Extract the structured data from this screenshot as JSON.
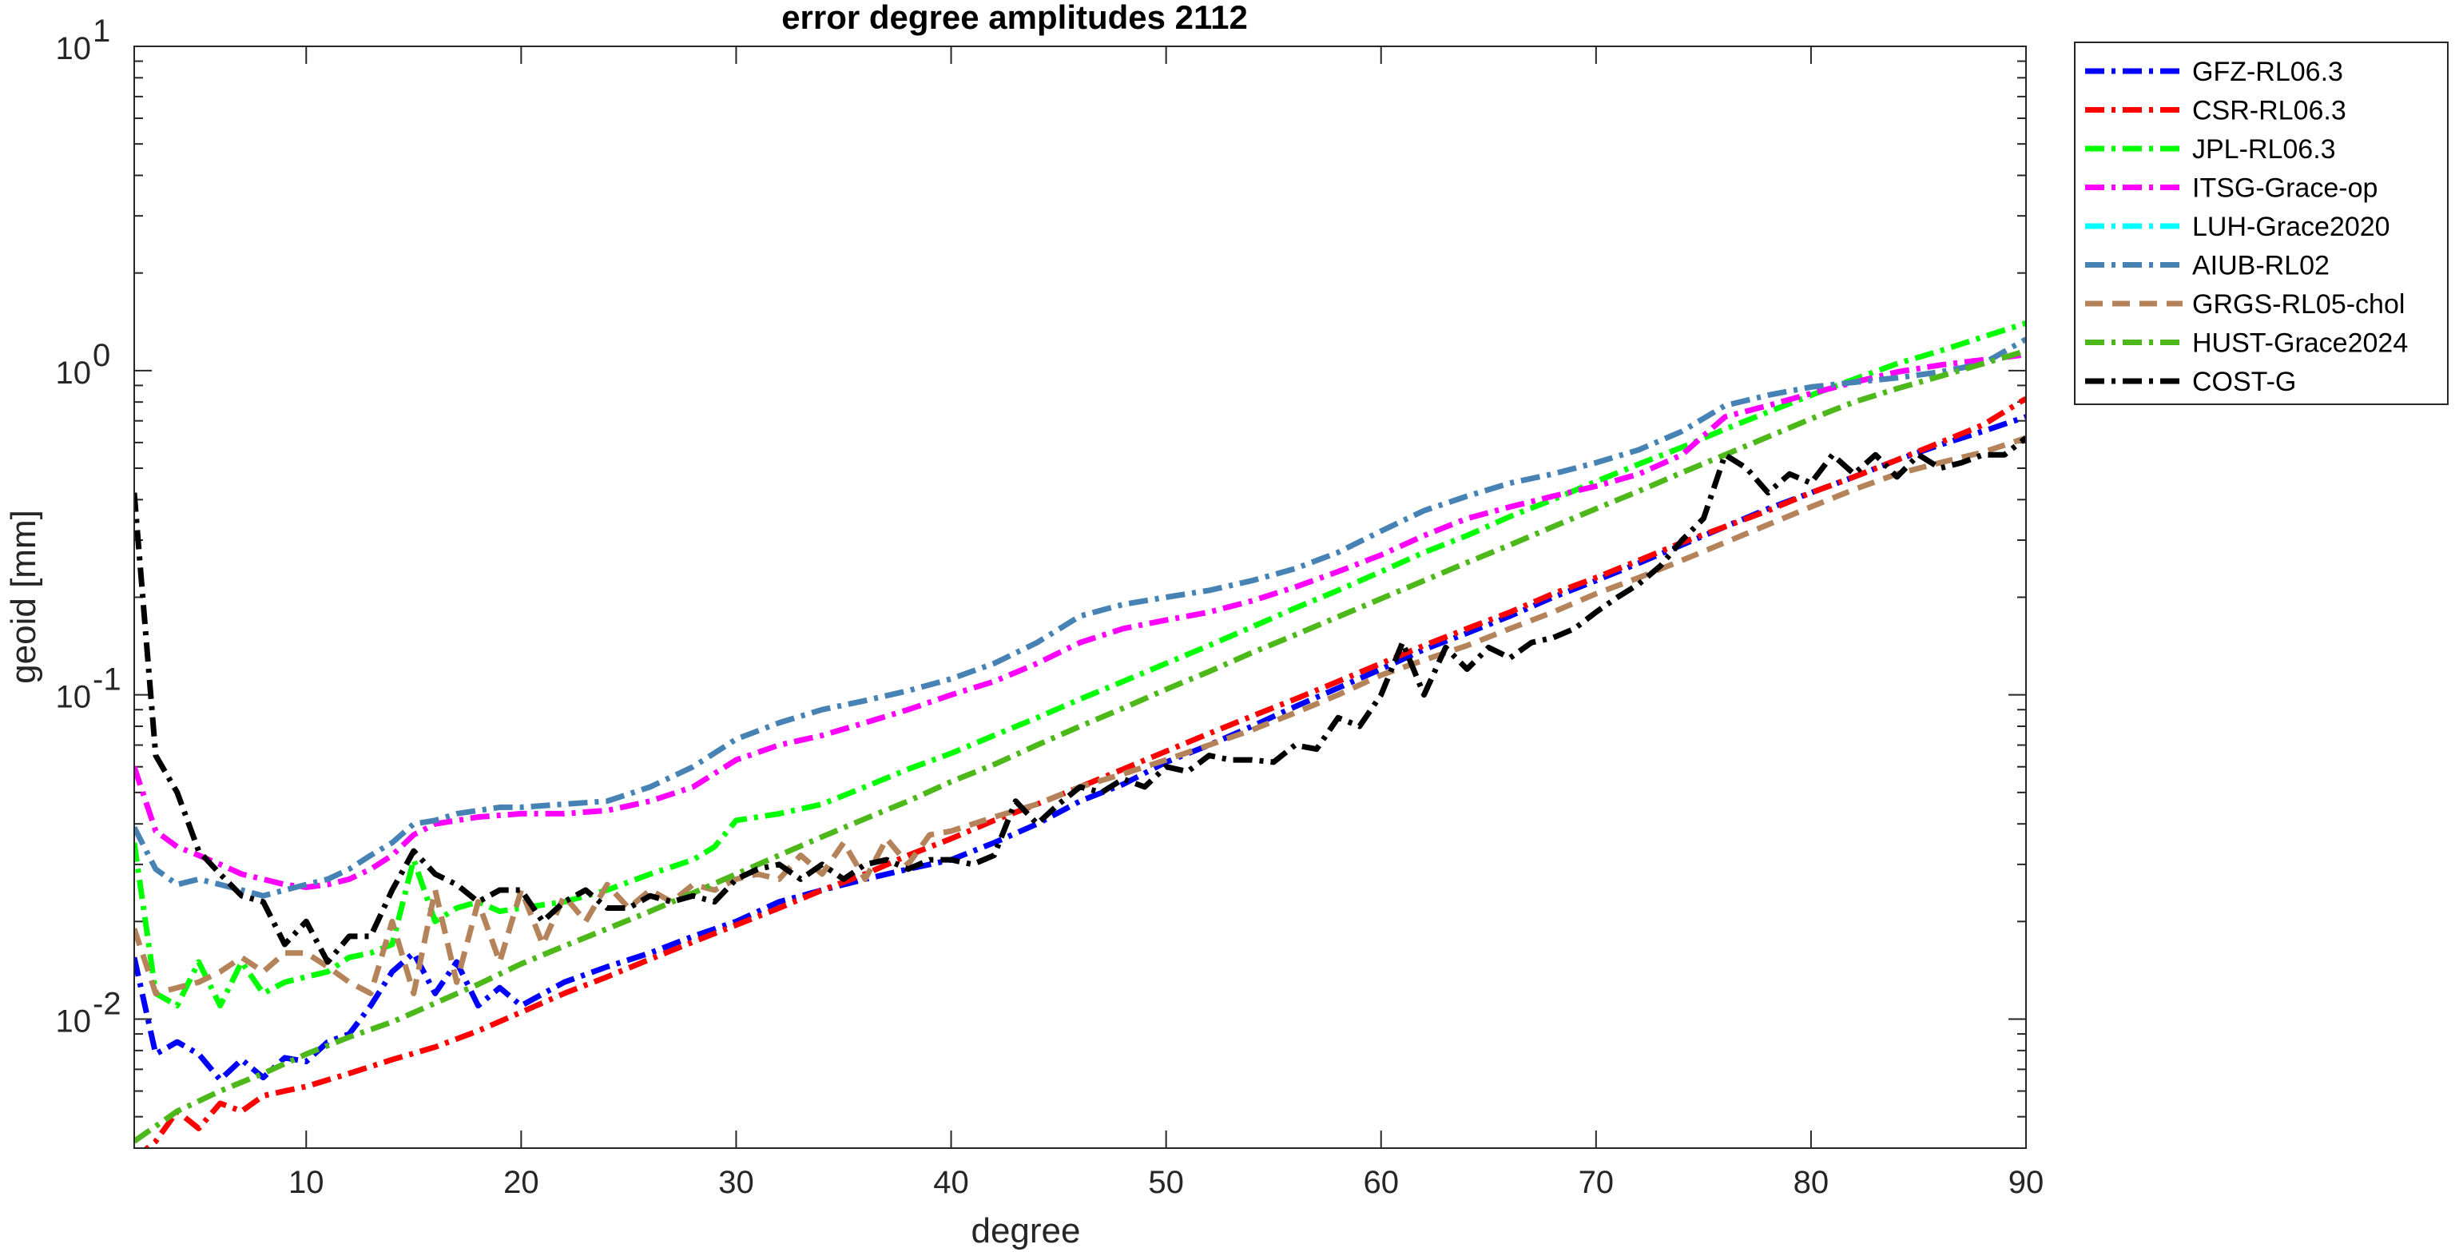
{
  "chart_data": {
    "type": "line",
    "title": "error degree amplitudes 2112",
    "xlabel": "degree",
    "ylabel": "geoid [mm]",
    "xlim": [
      2,
      90
    ],
    "ylim": [
      0.004,
      10
    ],
    "yscale": "log",
    "grid": false,
    "legend_position": "outside-top-right",
    "x_ticks": [
      10,
      20,
      30,
      40,
      50,
      60,
      70,
      80,
      90
    ],
    "y_ticks": [
      {
        "value": 0.01,
        "base": "10",
        "exp": "-2"
      },
      {
        "value": 0.1,
        "base": "10",
        "exp": "-1"
      },
      {
        "value": 1,
        "base": "10",
        "exp": "0"
      },
      {
        "value": 10,
        "base": "10",
        "exp": "1"
      }
    ],
    "series": [
      {
        "name": "GFZ-RL06.3",
        "color": "#0000ff",
        "dash": "dashdot",
        "x": [
          2,
          3,
          4,
          5,
          6,
          7,
          8,
          9,
          10,
          11,
          12,
          13,
          14,
          15,
          16,
          17,
          18,
          19,
          20,
          22,
          24,
          26,
          28,
          30,
          32,
          34,
          36,
          38,
          40,
          42,
          44,
          46,
          48,
          50,
          52,
          54,
          56,
          58,
          60,
          62,
          64,
          66,
          68,
          70,
          72,
          74,
          76,
          78,
          80,
          82,
          84,
          86,
          88,
          90
        ],
        "y": [
          0.0155,
          0.0078,
          0.0085,
          0.0078,
          0.0065,
          0.0075,
          0.0066,
          0.0076,
          0.0074,
          0.0085,
          0.009,
          0.011,
          0.014,
          0.016,
          0.012,
          0.015,
          0.011,
          0.0125,
          0.011,
          0.013,
          0.0145,
          0.016,
          0.018,
          0.02,
          0.023,
          0.025,
          0.027,
          0.029,
          0.031,
          0.035,
          0.04,
          0.047,
          0.053,
          0.062,
          0.07,
          0.08,
          0.092,
          0.105,
          0.12,
          0.138,
          0.155,
          0.175,
          0.2,
          0.225,
          0.255,
          0.29,
          0.33,
          0.375,
          0.42,
          0.47,
          0.53,
          0.59,
          0.65,
          0.72
        ]
      },
      {
        "name": "CSR-RL06.3",
        "color": "#ff0000",
        "dash": "dashdot",
        "x": [
          2,
          3,
          4,
          5,
          6,
          7,
          8,
          9,
          10,
          12,
          14,
          16,
          18,
          20,
          22,
          24,
          26,
          28,
          30,
          32,
          34,
          36,
          38,
          40,
          42,
          44,
          46,
          48,
          50,
          52,
          54,
          56,
          58,
          60,
          62,
          64,
          66,
          68,
          70,
          72,
          74,
          76,
          78,
          80,
          82,
          84,
          86,
          88,
          90
        ],
        "y": [
          0.0037,
          0.0042,
          0.0052,
          0.0046,
          0.0055,
          0.0052,
          0.0058,
          0.006,
          0.0062,
          0.0068,
          0.0075,
          0.0082,
          0.0092,
          0.0105,
          0.012,
          0.0135,
          0.0153,
          0.0173,
          0.0195,
          0.022,
          0.025,
          0.028,
          0.032,
          0.036,
          0.041,
          0.046,
          0.052,
          0.059,
          0.067,
          0.076,
          0.086,
          0.097,
          0.11,
          0.125,
          0.142,
          0.16,
          0.18,
          0.205,
          0.23,
          0.26,
          0.295,
          0.33,
          0.37,
          0.42,
          0.47,
          0.53,
          0.6,
          0.68,
          0.82
        ]
      },
      {
        "name": "JPL-RL06.3",
        "color": "#00ff00",
        "dash": "dashdot",
        "x": [
          2,
          3,
          4,
          5,
          6,
          7,
          8,
          9,
          10,
          11,
          12,
          13,
          14,
          15,
          16,
          17,
          18,
          19,
          20,
          22,
          24,
          26,
          28,
          29,
          30,
          32,
          34,
          36,
          38,
          40,
          42,
          44,
          46,
          48,
          50,
          52,
          54,
          56,
          58,
          60,
          62,
          64,
          66,
          68,
          70,
          72,
          74,
          76,
          78,
          80,
          82,
          84,
          86,
          88,
          90
        ],
        "y": [
          0.035,
          0.012,
          0.011,
          0.015,
          0.011,
          0.015,
          0.012,
          0.013,
          0.0135,
          0.014,
          0.0155,
          0.016,
          0.017,
          0.031,
          0.02,
          0.022,
          0.023,
          0.0215,
          0.022,
          0.023,
          0.025,
          0.028,
          0.031,
          0.034,
          0.041,
          0.043,
          0.046,
          0.052,
          0.059,
          0.066,
          0.075,
          0.085,
          0.097,
          0.11,
          0.125,
          0.142,
          0.162,
          0.185,
          0.21,
          0.24,
          0.275,
          0.31,
          0.355,
          0.4,
          0.455,
          0.515,
          0.58,
          0.66,
          0.745,
          0.84,
          0.94,
          1.05,
          1.15,
          1.27,
          1.4
        ]
      },
      {
        "name": "ITSG-Grace-op",
        "color": "#ff00ff",
        "dash": "dashdot",
        "x": [
          2,
          3,
          4,
          5,
          6,
          7,
          8,
          9,
          10,
          11,
          12,
          13,
          14,
          15,
          16,
          18,
          20,
          22,
          24,
          26,
          28,
          30,
          32,
          34,
          36,
          38,
          40,
          42,
          44,
          46,
          48,
          50,
          52,
          54,
          56,
          58,
          60,
          62,
          64,
          66,
          68,
          70,
          72,
          74,
          75,
          76,
          78,
          80,
          82,
          84,
          86,
          88,
          90
        ],
        "y": [
          0.06,
          0.038,
          0.034,
          0.032,
          0.03,
          0.028,
          0.027,
          0.026,
          0.0255,
          0.026,
          0.027,
          0.029,
          0.032,
          0.037,
          0.04,
          0.042,
          0.043,
          0.043,
          0.044,
          0.047,
          0.052,
          0.063,
          0.07,
          0.075,
          0.082,
          0.09,
          0.1,
          0.11,
          0.125,
          0.145,
          0.16,
          0.17,
          0.18,
          0.195,
          0.215,
          0.24,
          0.27,
          0.31,
          0.35,
          0.38,
          0.41,
          0.44,
          0.48,
          0.55,
          0.63,
          0.72,
          0.78,
          0.85,
          0.92,
          0.99,
          1.04,
          1.08,
          1.12
        ]
      },
      {
        "name": "LUH-Grace2020",
        "color": "#00ffff",
        "dash": "dashdot",
        "x": [],
        "y": []
      },
      {
        "name": "AIUB-RL02",
        "color": "#4682b4",
        "dash": "dashdot",
        "x": [
          2,
          3,
          4,
          5,
          6,
          7,
          8,
          9,
          10,
          11,
          12,
          13,
          14,
          15,
          16,
          17,
          18,
          19,
          20,
          22,
          24,
          26,
          28,
          30,
          32,
          34,
          36,
          38,
          40,
          42,
          44,
          46,
          48,
          50,
          52,
          54,
          56,
          58,
          60,
          62,
          64,
          66,
          68,
          70,
          72,
          74,
          76,
          78,
          80,
          82,
          84,
          86,
          88,
          90
        ],
        "y": [
          0.039,
          0.029,
          0.026,
          0.027,
          0.026,
          0.025,
          0.024,
          0.025,
          0.026,
          0.027,
          0.029,
          0.032,
          0.035,
          0.04,
          0.041,
          0.043,
          0.044,
          0.045,
          0.045,
          0.046,
          0.047,
          0.052,
          0.06,
          0.073,
          0.082,
          0.09,
          0.096,
          0.103,
          0.112,
          0.125,
          0.145,
          0.175,
          0.19,
          0.2,
          0.21,
          0.225,
          0.245,
          0.275,
          0.32,
          0.37,
          0.41,
          0.45,
          0.48,
          0.52,
          0.57,
          0.65,
          0.78,
          0.84,
          0.89,
          0.92,
          0.95,
          0.99,
          1.05,
          1.25
        ]
      },
      {
        "name": "GRGS-RL05-chol",
        "color": "#b5835a",
        "dash": "dashed",
        "x": [
          2,
          3,
          4,
          5,
          6,
          7,
          8,
          9,
          10,
          11,
          12,
          13,
          14,
          15,
          16,
          17,
          18,
          19,
          20,
          21,
          22,
          23,
          24,
          25,
          26,
          27,
          28,
          29,
          30,
          31,
          32,
          33,
          34,
          35,
          36,
          37,
          38,
          39,
          40,
          42,
          44,
          46,
          48,
          50,
          52,
          54,
          56,
          58,
          60,
          62,
          64,
          66,
          68,
          70,
          72,
          74,
          76,
          78,
          80,
          82,
          84,
          86,
          88,
          90
        ],
        "y": [
          0.019,
          0.012,
          0.0125,
          0.013,
          0.014,
          0.0155,
          0.014,
          0.016,
          0.016,
          0.0145,
          0.013,
          0.012,
          0.02,
          0.012,
          0.025,
          0.013,
          0.023,
          0.015,
          0.025,
          0.017,
          0.024,
          0.02,
          0.026,
          0.022,
          0.025,
          0.023,
          0.026,
          0.025,
          0.027,
          0.028,
          0.027,
          0.032,
          0.028,
          0.035,
          0.027,
          0.036,
          0.03,
          0.037,
          0.038,
          0.042,
          0.046,
          0.052,
          0.057,
          0.063,
          0.07,
          0.078,
          0.088,
          0.1,
          0.115,
          0.128,
          0.142,
          0.16,
          0.18,
          0.205,
          0.23,
          0.26,
          0.295,
          0.335,
          0.38,
          0.43,
          0.48,
          0.52,
          0.56,
          0.62
        ]
      },
      {
        "name": "HUST-Grace2024",
        "color": "#4db81a",
        "dash": "dashdot",
        "x": [
          2,
          4,
          6,
          8,
          10,
          12,
          14,
          16,
          18,
          20,
          22,
          24,
          26,
          28,
          30,
          32,
          34,
          36,
          38,
          40,
          42,
          44,
          46,
          48,
          50,
          52,
          54,
          56,
          58,
          60,
          62,
          64,
          66,
          68,
          70,
          72,
          74,
          76,
          78,
          80,
          82,
          84,
          86,
          88,
          90
        ],
        "y": [
          0.0042,
          0.0052,
          0.006,
          0.0068,
          0.0078,
          0.0088,
          0.0098,
          0.0112,
          0.0128,
          0.0148,
          0.0168,
          0.019,
          0.0215,
          0.0245,
          0.028,
          0.032,
          0.0365,
          0.0415,
          0.047,
          0.054,
          0.061,
          0.07,
          0.08,
          0.091,
          0.104,
          0.118,
          0.135,
          0.153,
          0.174,
          0.198,
          0.225,
          0.256,
          0.29,
          0.33,
          0.375,
          0.425,
          0.485,
          0.55,
          0.625,
          0.71,
          0.8,
          0.88,
          0.96,
          1.05,
          1.15
        ]
      },
      {
        "name": "COST-G",
        "color": "#000000",
        "dash": "dashdot",
        "x": [
          2,
          3,
          4,
          5,
          6,
          7,
          8,
          9,
          10,
          11,
          12,
          13,
          14,
          15,
          16,
          17,
          18,
          19,
          20,
          21,
          22,
          23,
          24,
          25,
          26,
          27,
          28,
          29,
          30,
          31,
          32,
          33,
          34,
          35,
          36,
          37,
          38,
          39,
          40,
          41,
          42,
          43,
          44,
          45,
          46,
          47,
          48,
          49,
          50,
          51,
          52,
          53,
          54,
          55,
          56,
          57,
          58,
          59,
          60,
          61,
          62,
          63,
          64,
          65,
          66,
          67,
          68,
          69,
          70,
          71,
          72,
          73,
          74,
          75,
          76,
          77,
          78,
          79,
          80,
          81,
          82,
          83,
          84,
          85,
          86,
          87,
          88,
          89,
          90
        ],
        "y": [
          0.42,
          0.065,
          0.05,
          0.033,
          0.028,
          0.024,
          0.023,
          0.017,
          0.02,
          0.015,
          0.018,
          0.018,
          0.025,
          0.033,
          0.028,
          0.026,
          0.023,
          0.025,
          0.025,
          0.02,
          0.023,
          0.025,
          0.022,
          0.022,
          0.024,
          0.023,
          0.024,
          0.023,
          0.027,
          0.029,
          0.03,
          0.027,
          0.03,
          0.027,
          0.03,
          0.031,
          0.029,
          0.031,
          0.031,
          0.03,
          0.032,
          0.047,
          0.04,
          0.046,
          0.052,
          0.05,
          0.055,
          0.052,
          0.06,
          0.058,
          0.065,
          0.063,
          0.063,
          0.062,
          0.07,
          0.068,
          0.085,
          0.08,
          0.1,
          0.145,
          0.1,
          0.14,
          0.12,
          0.14,
          0.13,
          0.145,
          0.15,
          0.16,
          0.18,
          0.2,
          0.22,
          0.25,
          0.3,
          0.35,
          0.55,
          0.5,
          0.42,
          0.48,
          0.45,
          0.55,
          0.48,
          0.55,
          0.47,
          0.55,
          0.5,
          0.52,
          0.55,
          0.55,
          0.62
        ]
      }
    ]
  }
}
